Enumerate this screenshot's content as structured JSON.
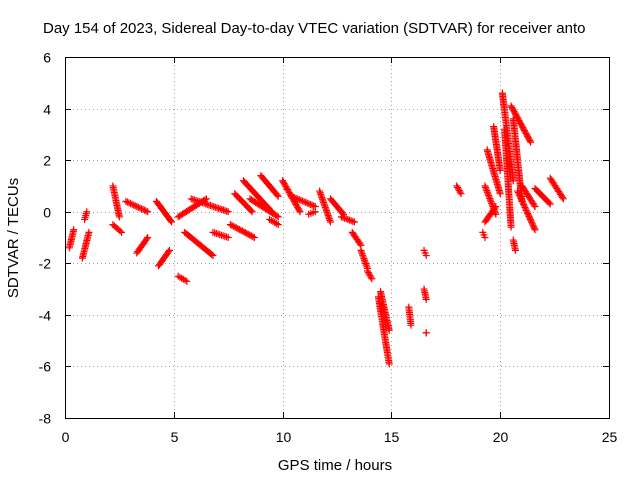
{
  "chart_data": {
    "type": "scatter",
    "title": "Day 154 of 2023, Sidereal Day-to-day VTEC variation (SDTVAR) for receiver anto",
    "xlabel": "GPS time / hours",
    "ylabel": "SDTVAR / TECUs",
    "xlim": [
      0,
      25
    ],
    "ylim": [
      -8,
      6
    ],
    "xticks": [
      "0",
      "5",
      "10",
      "15",
      "20",
      "25"
    ],
    "yticks": [
      "-8",
      "-6",
      "-4",
      "-2",
      "0",
      "2",
      "4",
      "6"
    ],
    "grid": true,
    "marker": "+",
    "color": "#ff0000",
    "series": [
      {
        "name": "SDTVAR",
        "segments": [
          {
            "x0": 0.2,
            "x1": 0.4,
            "y0": -1.4,
            "y1": -0.7
          },
          {
            "x0": 0.8,
            "x1": 1.1,
            "y0": -1.8,
            "y1": -0.8
          },
          {
            "x0": 0.9,
            "x1": 1.0,
            "y0": -0.3,
            "y1": 0.0
          },
          {
            "x0": 2.2,
            "x1": 2.5,
            "y0": 1.0,
            "y1": -0.2
          },
          {
            "x0": 2.2,
            "x1": 2.6,
            "y0": -0.5,
            "y1": -0.8
          },
          {
            "x0": 2.8,
            "x1": 3.8,
            "y0": 0.4,
            "y1": 0.0
          },
          {
            "x0": 3.3,
            "x1": 3.8,
            "y0": -1.6,
            "y1": -1.0
          },
          {
            "x0": 4.2,
            "x1": 4.9,
            "y0": 0.4,
            "y1": -0.4
          },
          {
            "x0": 4.3,
            "x1": 4.8,
            "y0": -2.1,
            "y1": -1.5
          },
          {
            "x0": 5.2,
            "x1": 5.6,
            "y0": -2.5,
            "y1": -2.7
          },
          {
            "x0": 5.2,
            "x1": 6.5,
            "y0": -0.2,
            "y1": 0.5
          },
          {
            "x0": 5.5,
            "x1": 6.8,
            "y0": -0.8,
            "y1": -1.7
          },
          {
            "x0": 5.8,
            "x1": 7.5,
            "y0": 0.5,
            "y1": 0.0
          },
          {
            "x0": 6.8,
            "x1": 7.5,
            "y0": -0.8,
            "y1": -1.0
          },
          {
            "x0": 7.8,
            "x1": 8.6,
            "y0": 0.7,
            "y1": 0.0
          },
          {
            "x0": 7.6,
            "x1": 8.7,
            "y0": -0.5,
            "y1": -1.0
          },
          {
            "x0": 8.2,
            "x1": 9.5,
            "y0": 1.2,
            "y1": 0.0
          },
          {
            "x0": 8.5,
            "x1": 9.8,
            "y0": 0.5,
            "y1": -0.2
          },
          {
            "x0": 9.0,
            "x1": 9.8,
            "y0": 1.4,
            "y1": 0.6
          },
          {
            "x0": 9.4,
            "x1": 9.8,
            "y0": -0.3,
            "y1": -0.5
          },
          {
            "x0": 10.0,
            "x1": 10.8,
            "y0": 1.2,
            "y1": 0.0
          },
          {
            "x0": 10.4,
            "x1": 11.5,
            "y0": 0.6,
            "y1": 0.2
          },
          {
            "x0": 11.2,
            "x1": 11.5,
            "y0": -0.1,
            "y1": 0.0
          },
          {
            "x0": 11.7,
            "x1": 12.2,
            "y0": 0.8,
            "y1": -0.4
          },
          {
            "x0": 12.2,
            "x1": 12.8,
            "y0": 0.5,
            "y1": -0.1
          },
          {
            "x0": 12.7,
            "x1": 13.3,
            "y0": -0.2,
            "y1": -0.4
          },
          {
            "x0": 13.2,
            "x1": 13.6,
            "y0": -0.8,
            "y1": -1.3
          },
          {
            "x0": 13.6,
            "x1": 13.9,
            "y0": -1.5,
            "y1": -2.2
          },
          {
            "x0": 13.9,
            "x1": 14.1,
            "y0": -2.3,
            "y1": -2.6
          },
          {
            "x0": 14.4,
            "x1": 14.9,
            "y0": -3.3,
            "y1": -5.9
          },
          {
            "x0": 14.5,
            "x1": 14.9,
            "y0": -3.1,
            "y1": -4.6
          },
          {
            "x0": 15.8,
            "x1": 15.9,
            "y0": -3.7,
            "y1": -4.4
          },
          {
            "x0": 16.5,
            "x1": 16.6,
            "y0": -1.5,
            "y1": -1.7
          },
          {
            "x0": 16.5,
            "x1": 16.6,
            "y0": -3.0,
            "y1": -3.4
          },
          {
            "x0": 16.6,
            "x1": 16.6,
            "y0": -4.7,
            "y1": -4.7
          },
          {
            "x0": 18.0,
            "x1": 18.2,
            "y0": 1.0,
            "y1": 0.7
          },
          {
            "x0": 19.2,
            "x1": 19.3,
            "y0": -0.8,
            "y1": -1.0
          },
          {
            "x0": 19.3,
            "x1": 19.8,
            "y0": 1.0,
            "y1": -0.1
          },
          {
            "x0": 19.4,
            "x1": 20.0,
            "y0": 2.4,
            "y1": 0.7
          },
          {
            "x0": 19.7,
            "x1": 20.0,
            "y0": 3.3,
            "y1": 1.6
          },
          {
            "x0": 19.3,
            "x1": 19.8,
            "y0": -0.4,
            "y1": 0.2
          },
          {
            "x0": 20.1,
            "x1": 20.6,
            "y0": 4.6,
            "y1": 1.2
          },
          {
            "x0": 20.2,
            "x1": 20.5,
            "y0": 3.2,
            "y1": -0.6
          },
          {
            "x0": 20.5,
            "x1": 21.4,
            "y0": 4.1,
            "y1": 2.7
          },
          {
            "x0": 20.6,
            "x1": 21.0,
            "y0": 3.6,
            "y1": 0.4
          },
          {
            "x0": 20.6,
            "x1": 20.7,
            "y0": -1.1,
            "y1": -1.5
          },
          {
            "x0": 20.8,
            "x1": 21.6,
            "y0": 0.8,
            "y1": -0.7
          },
          {
            "x0": 21.0,
            "x1": 21.6,
            "y0": 1.0,
            "y1": 0.2
          },
          {
            "x0": 21.6,
            "x1": 22.3,
            "y0": 0.9,
            "y1": 0.3
          },
          {
            "x0": 22.3,
            "x1": 22.9,
            "y0": 1.3,
            "y1": 0.5
          }
        ]
      }
    ]
  }
}
